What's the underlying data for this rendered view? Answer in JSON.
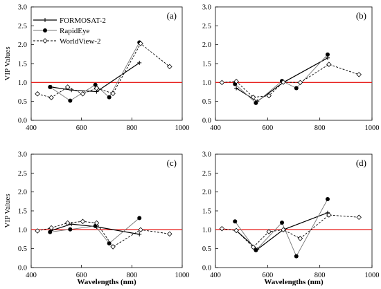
{
  "figure": {
    "panels": [
      "(a)",
      "(b)",
      "(c)",
      "(d)"
    ]
  },
  "legend": {
    "entries": [
      "FORMOSAT-2",
      "RapidEye",
      "WorldView-2"
    ]
  },
  "axes": {
    "ylabel": "VIP Values",
    "xlabel": "Wavelengths (nm)",
    "xticks": [
      "400",
      "600",
      "800",
      "1000"
    ],
    "yticks": [
      "0.0",
      "0.5",
      "1.0",
      "1.5",
      "2.0",
      "2.5",
      "3.0"
    ]
  },
  "colors": {
    "threshold": "#e8201e",
    "formosat": "#000000",
    "rapideye": "#777777",
    "worldview": "#000000"
  },
  "chart_data": [
    {
      "type": "line",
      "panel_label": "(a)",
      "xlim": [
        400,
        1000
      ],
      "ylim": [
        0,
        3
      ],
      "threshold": 1.0,
      "ylabel": "VIP Values",
      "xlabel": "",
      "legend_position": "top-left",
      "series": [
        {
          "name": "FORMOSAT-2",
          "x": [
            480,
            560,
            660,
            830
          ],
          "y": [
            0.88,
            0.8,
            0.76,
            1.52
          ]
        },
        {
          "name": "RapidEye",
          "x": [
            475,
            555,
            655,
            710,
            830
          ],
          "y": [
            0.88,
            0.52,
            0.94,
            0.61,
            2.06
          ]
        },
        {
          "name": "WorldView-2",
          "x": [
            425,
            480,
            545,
            605,
            660,
            725,
            835,
            950
          ],
          "y": [
            0.7,
            0.6,
            0.88,
            0.7,
            0.85,
            0.71,
            2.03,
            1.42
          ]
        }
      ]
    },
    {
      "type": "line",
      "panel_label": "(b)",
      "xlim": [
        400,
        1000
      ],
      "ylim": [
        0,
        3
      ],
      "threshold": 1.0,
      "ylabel": "",
      "xlabel": "",
      "series": [
        {
          "name": "FORMOSAT-2",
          "x": [
            480,
            560,
            660,
            830
          ],
          "y": [
            0.85,
            0.5,
            1.0,
            1.65
          ]
        },
        {
          "name": "RapidEye",
          "x": [
            475,
            555,
            655,
            710,
            830
          ],
          "y": [
            0.96,
            0.46,
            1.04,
            0.85,
            1.74
          ]
        },
        {
          "name": "WorldView-2",
          "x": [
            425,
            480,
            545,
            605,
            660,
            725,
            835,
            950
          ],
          "y": [
            1.0,
            1.03,
            0.61,
            0.65,
            1.01,
            1.0,
            1.48,
            1.21
          ]
        }
      ]
    },
    {
      "type": "line",
      "panel_label": "(c)",
      "xlim": [
        400,
        1000
      ],
      "ylim": [
        0,
        3
      ],
      "threshold": 1.0,
      "ylabel": "VIP Values",
      "xlabel": "Wavelengths (nm)",
      "series": [
        {
          "name": "FORMOSAT-2",
          "x": [
            480,
            560,
            660,
            830
          ],
          "y": [
            0.98,
            1.15,
            1.08,
            0.88
          ]
        },
        {
          "name": "RapidEye",
          "x": [
            475,
            555,
            655,
            710,
            830
          ],
          "y": [
            0.94,
            1.01,
            1.1,
            0.64,
            1.31
          ]
        },
        {
          "name": "WorldView-2",
          "x": [
            425,
            480,
            545,
            605,
            660,
            725,
            835,
            950
          ],
          "y": [
            0.97,
            1.05,
            1.18,
            1.22,
            1.18,
            0.55,
            1.0,
            0.89
          ]
        }
      ]
    },
    {
      "type": "line",
      "panel_label": "(d)",
      "xlim": [
        400,
        1000
      ],
      "ylim": [
        0,
        3
      ],
      "threshold": 1.0,
      "ylabel": "",
      "xlabel": "Wavelengths (nm)",
      "series": [
        {
          "name": "FORMOSAT-2",
          "x": [
            480,
            560,
            660,
            830
          ],
          "y": [
            0.98,
            0.48,
            1.0,
            1.45
          ]
        },
        {
          "name": "RapidEye",
          "x": [
            475,
            555,
            655,
            710,
            830
          ],
          "y": [
            1.22,
            0.46,
            1.19,
            0.3,
            1.81
          ]
        },
        {
          "name": "WorldView-2",
          "x": [
            425,
            480,
            545,
            605,
            660,
            725,
            835,
            950
          ],
          "y": [
            1.03,
            0.98,
            0.54,
            0.95,
            1.0,
            0.77,
            1.39,
            1.33
          ]
        }
      ]
    }
  ]
}
